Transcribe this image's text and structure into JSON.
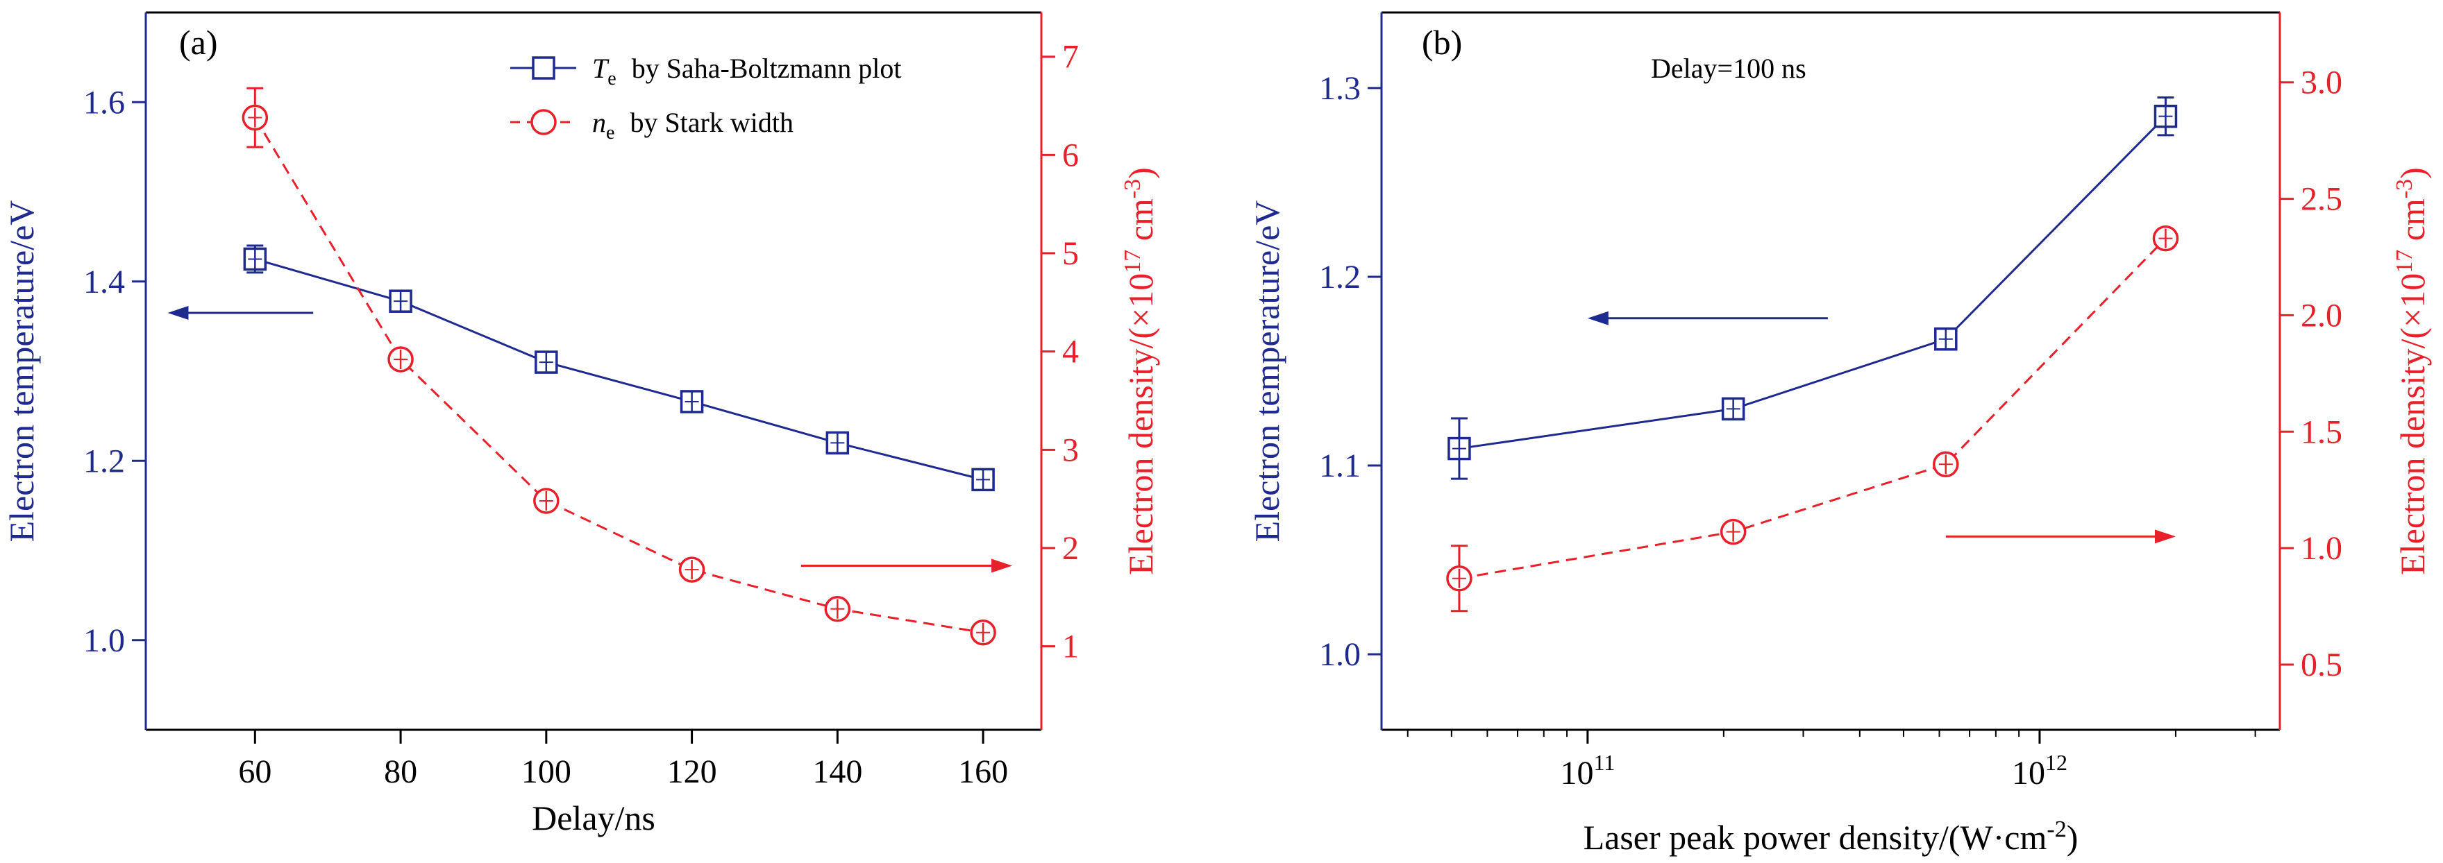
{
  "colors": {
    "blue": "#1f2a8f",
    "red": "#e8202a",
    "axis": "#000000"
  },
  "chart_data": [
    {
      "id": "a",
      "type": "line",
      "panel_label": "(a)",
      "xlabel": "Delay/ns",
      "ylabel_left": "Electron temperature/eV",
      "ylabel_right": {
        "text": "Electron density/(×10",
        "sup1": "17",
        "mid": " cm",
        "sup2": "-3",
        "end": ")"
      },
      "xlim": [
        45,
        168
      ],
      "ylim_left": [
        0.9,
        1.7
      ],
      "ylim_right": [
        0.15,
        7.45
      ],
      "x_ticks": [
        60,
        80,
        100,
        120,
        140,
        160
      ],
      "y_left_ticks": [
        1.0,
        1.2,
        1.4,
        1.6
      ],
      "y_left_tick_labels": [
        "1.0",
        "1.2",
        "1.4",
        "1.6"
      ],
      "y_right_ticks": [
        1,
        2,
        3,
        4,
        5,
        6,
        7
      ],
      "y_right_tick_labels": [
        "1",
        "2",
        "3",
        "4",
        "5",
        "6",
        "7"
      ],
      "legend": {
        "position": "top-right",
        "items": [
          {
            "symbol_sym": "T",
            "symbol_sub": "e",
            "text": "by Saha-Boltzmann plot"
          },
          {
            "symbol_sym": "n",
            "symbol_sub": "e",
            "text": "by Stark width"
          }
        ]
      },
      "series": [
        {
          "axis": "left",
          "marker": "square",
          "style": "solid",
          "x": [
            60,
            80,
            100,
            120,
            140,
            160
          ],
          "y": [
            1.425,
            1.378,
            1.31,
            1.266,
            1.22,
            1.179
          ],
          "err": [
            0.015,
            0.01,
            0.008,
            0.008,
            0.008,
            0.006
          ]
        },
        {
          "axis": "right",
          "marker": "circle",
          "style": "dashed",
          "x": [
            60,
            80,
            100,
            120,
            140,
            160
          ],
          "y": [
            6.38,
            3.92,
            2.48,
            1.78,
            1.38,
            1.14
          ],
          "err": [
            0.3,
            0.05,
            0.05,
            0.05,
            0.05,
            0.05
          ]
        }
      ],
      "arrows": [
        {
          "axis": "left",
          "direction": "left",
          "x_from": 68,
          "x_to": 48,
          "y": 1.365
        },
        {
          "axis": "right",
          "direction": "right",
          "x_from": 135,
          "x_to": 164,
          "y": 1.82
        }
      ]
    },
    {
      "id": "b",
      "type": "line",
      "panel_label": "(b)",
      "annotation": "Delay=100 ns",
      "xlabel": {
        "text": "Laser peak power density/(W·cm",
        "sup": "-2",
        "end": ")"
      },
      "ylabel_left": "Electron temperature/eV",
      "ylabel_right": {
        "text": "Electron density/(×10",
        "sup1": "17",
        "mid": " cm",
        "sup2": "-3",
        "end": ")"
      },
      "x_scale": "log",
      "xlim": [
        35000000000,
        3400000000000
      ],
      "ylim_left": [
        0.96,
        1.34
      ],
      "ylim_right": [
        0.22,
        3.3
      ],
      "x_ticks": [
        100000000000,
        1000000000000
      ],
      "x_tick_labels": [
        {
          "base": "10",
          "exp": "11"
        },
        {
          "base": "10",
          "exp": "12"
        }
      ],
      "y_left_ticks": [
        1.0,
        1.1,
        1.2,
        1.3
      ],
      "y_left_tick_labels": [
        "1.0",
        "1.1",
        "1.2",
        "1.3"
      ],
      "y_right_ticks": [
        0.5,
        1.0,
        1.5,
        2.0,
        2.5,
        3.0
      ],
      "y_right_tick_labels": [
        "0.5",
        "1.0",
        "1.5",
        "2.0",
        "2.5",
        "3.0"
      ],
      "series": [
        {
          "axis": "left",
          "marker": "square",
          "style": "solid",
          "x": [
            52000000000,
            210000000000,
            620000000000,
            1900000000000
          ],
          "y": [
            1.109,
            1.13,
            1.167,
            1.285
          ],
          "err": [
            0.016,
            0.004,
            0.004,
            0.01
          ]
        },
        {
          "axis": "right",
          "marker": "circle",
          "style": "dashed",
          "x": [
            52000000000,
            210000000000,
            620000000000,
            1900000000000
          ],
          "y": [
            0.87,
            1.07,
            1.36,
            2.33
          ],
          "err": [
            0.14,
            0.04,
            0.04,
            0.04
          ]
        }
      ],
      "arrows": [
        {
          "axis": "left",
          "direction": "left",
          "x_from": 340000000000,
          "x_to": 100000000000,
          "y": 1.178
        },
        {
          "axis": "right",
          "direction": "right",
          "x_from": 620000000000,
          "x_to": 2000000000000,
          "y": 1.05
        }
      ]
    }
  ]
}
